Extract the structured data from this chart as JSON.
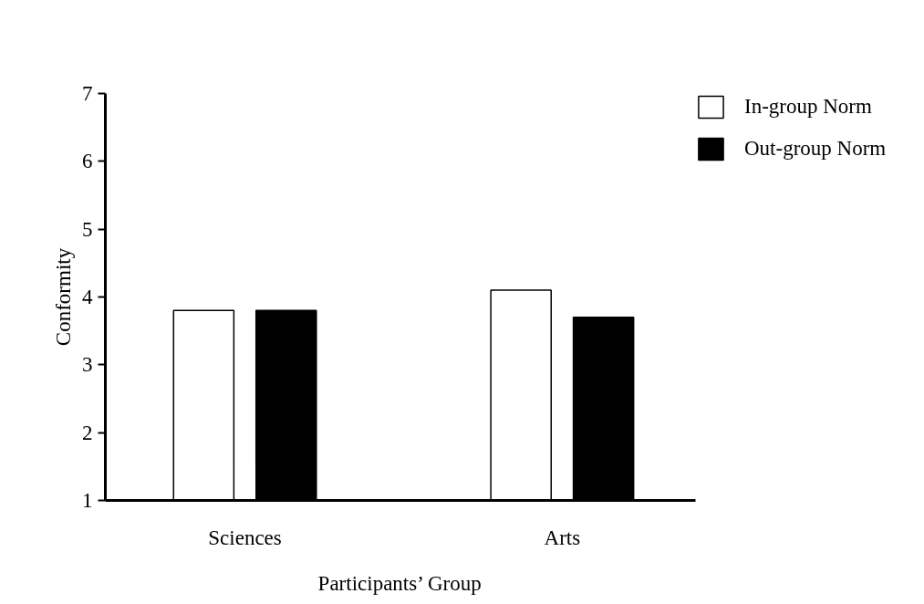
{
  "chart_data": {
    "type": "bar",
    "xlabel": "Participants’ Group",
    "ylabel": "Conformity",
    "categories": [
      "Sciences",
      "Arts"
    ],
    "series": [
      {
        "name": "In-group Norm",
        "color": "#ffffff",
        "values": [
          3.8,
          4.1
        ]
      },
      {
        "name": "Out-group Norm",
        "color": "#000000",
        "values": [
          3.8,
          3.7
        ]
      }
    ],
    "ylim": [
      1,
      7
    ],
    "yticks": [
      1,
      2,
      3,
      4,
      5,
      6,
      7
    ],
    "grid": false,
    "legend": "top right"
  }
}
